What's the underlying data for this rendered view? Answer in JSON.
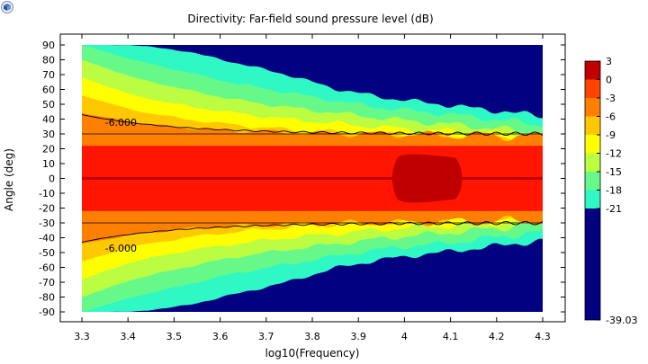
{
  "chart_data": {
    "type": "heatmap",
    "title": "Directivity: Far-field sound pressure level (dB)",
    "xlabel": "log10(Frequency)",
    "ylabel": "Angle (deg)",
    "xlim": [
      3.3,
      4.3
    ],
    "ylim": [
      -90,
      90
    ],
    "x_ticks": [
      "3.3",
      "3.4",
      "3.5",
      "3.6",
      "3.7",
      "3.8",
      "3.9",
      "4",
      "4.1",
      "4.2",
      "4.3"
    ],
    "y_ticks": [
      "90",
      "80",
      "70",
      "60",
      "50",
      "40",
      "30",
      "20",
      "10",
      "0",
      "-10",
      "-20",
      "-30",
      "-40",
      "-50",
      "-60",
      "-70",
      "-80",
      "-90"
    ],
    "colorbar": {
      "max": "3",
      "min": "-39.03",
      "tick_labels": [
        "3",
        "0",
        "-3",
        "-6",
        "-9",
        "-12",
        "-15",
        "-18",
        "-21",
        "-39.03"
      ],
      "levels": [
        3,
        0,
        -3,
        -6,
        -9,
        -12,
        -15,
        -18,
        -21,
        -39.03
      ],
      "colors": [
        "#c00000",
        "#ff1500",
        "#ff4400",
        "#ff8000",
        "#ffc800",
        "#ffff00",
        "#bcfd42",
        "#66f98a",
        "#2ff8c4",
        "#000080"
      ]
    },
    "contour_annotations": [
      "-6.000",
      "-6.000"
    ],
    "contour_level": -6,
    "grid": false
  }
}
